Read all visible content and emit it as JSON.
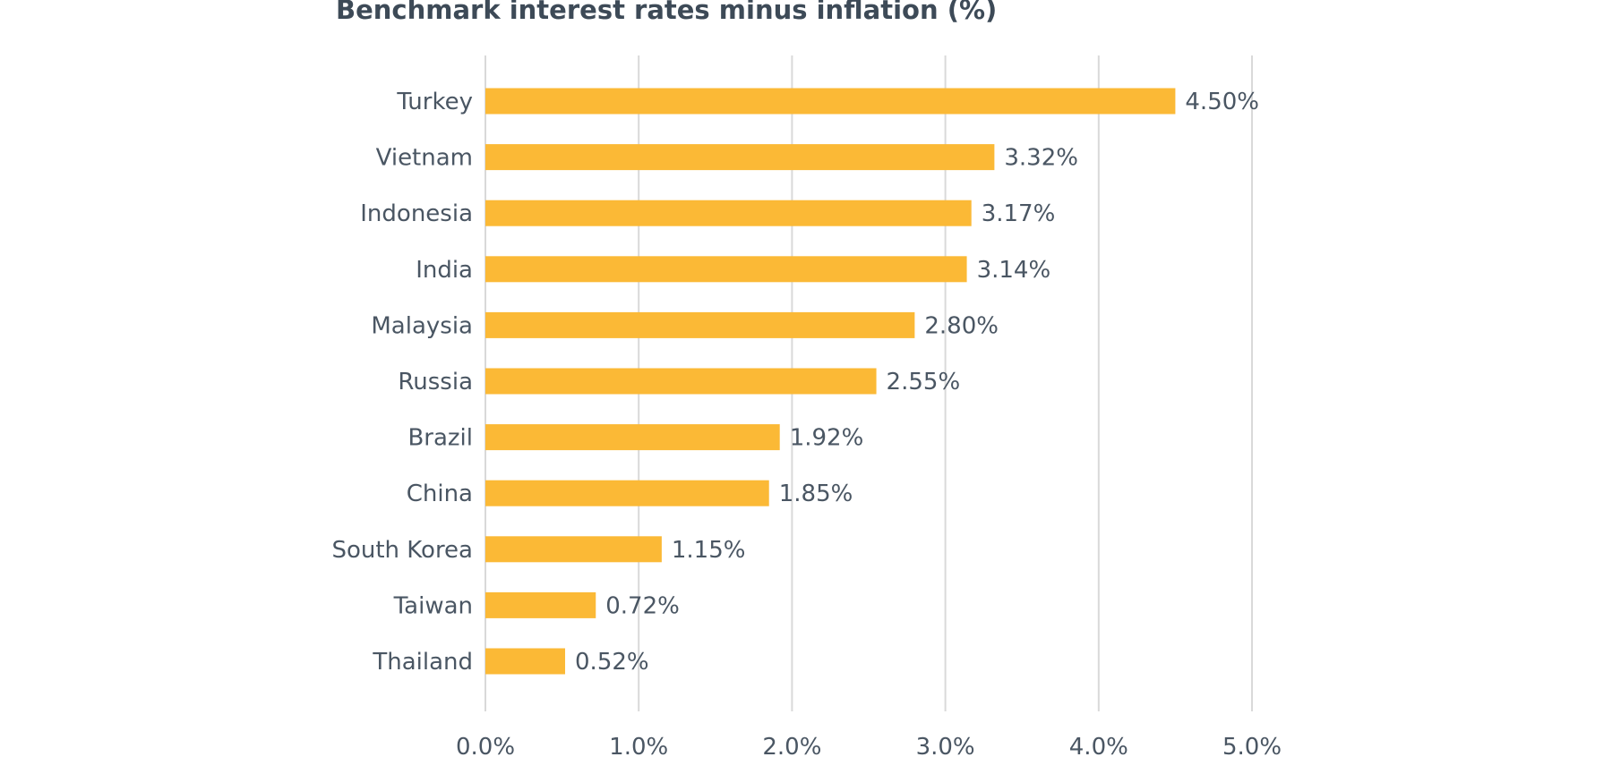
{
  "chart_data": {
    "type": "bar",
    "orientation": "horizontal",
    "title": "Benchmark interest rates minus inflation (%)",
    "categories": [
      "Turkey",
      "Vietnam",
      "Indonesia",
      "India",
      "Malaysia",
      "Russia",
      "Brazil",
      "China",
      "South Korea",
      "Taiwan",
      "Thailand"
    ],
    "values": [
      4.5,
      3.32,
      3.17,
      3.14,
      2.8,
      2.55,
      1.92,
      1.85,
      1.15,
      0.72,
      0.52
    ],
    "value_labels": [
      "4.50%",
      "3.32%",
      "3.17%",
      "3.14%",
      "2.80%",
      "2.55%",
      "1.92%",
      "1.85%",
      "1.15%",
      "0.72%",
      "0.52%"
    ],
    "x_ticks": [
      0,
      1,
      2,
      3,
      4,
      5
    ],
    "x_tick_labels": [
      "0.0%",
      "1.0%",
      "2.0%",
      "3.0%",
      "4.0%",
      "5.0%"
    ],
    "xlim": [
      0,
      5
    ],
    "xlabel": "",
    "ylabel": "",
    "grid": "vertical",
    "legend": "none",
    "bar_color": "#fbb936",
    "grid_color": "#d9d9d9",
    "text_color": "#4a5663",
    "title_color": "#3d4a57"
  }
}
